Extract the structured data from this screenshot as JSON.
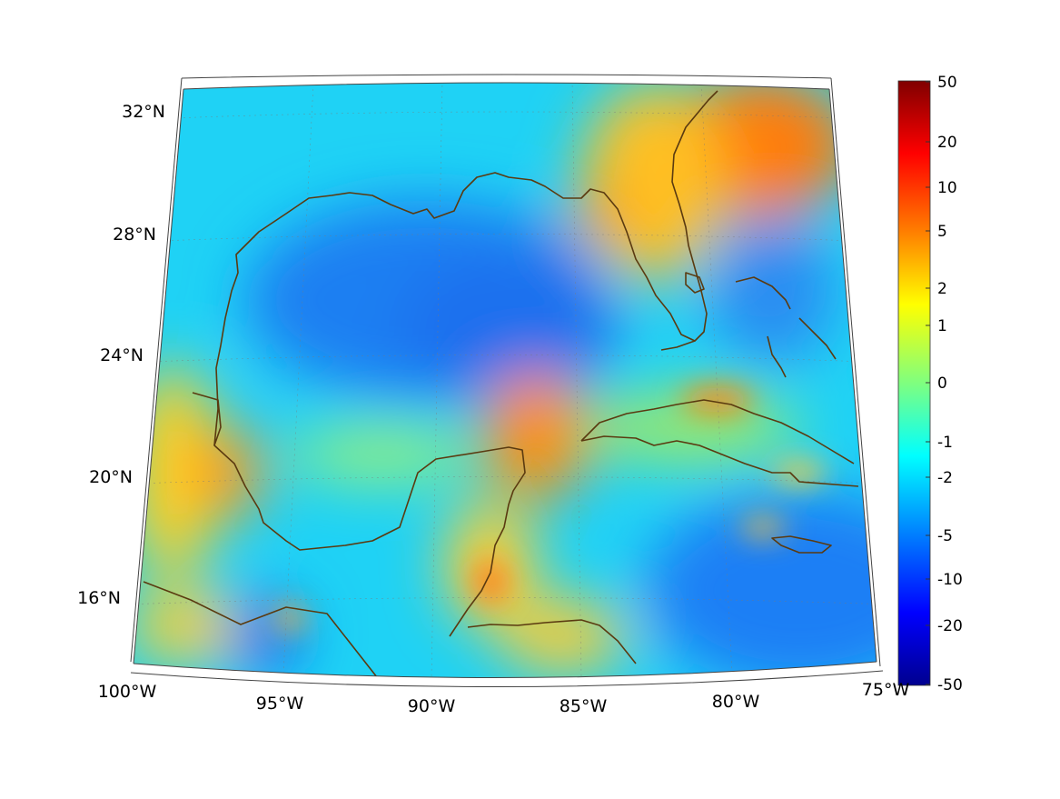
{
  "map": {
    "lat_labels": [
      "32°N",
      "28°N",
      "24°N",
      "20°N",
      "16°N"
    ],
    "lon_labels": [
      "100°W",
      "95°W",
      "90°W",
      "85°W",
      "80°W",
      "75°W"
    ],
    "lat_values": [
      32,
      28,
      24,
      20,
      16
    ],
    "lon_values": [
      -100,
      -95,
      -90,
      -85,
      -80,
      -75
    ],
    "extent": {
      "lon_min": -100,
      "lon_max": -75,
      "lat_min": 15,
      "lat_max": 33
    },
    "coastline_color": "#5a3a10",
    "grid": "dotted"
  },
  "colorbar": {
    "tick_labels": [
      "50",
      "20",
      "10",
      "5",
      "2",
      "1",
      "0",
      "-1",
      "-2",
      "-5",
      "-10",
      "-20",
      "-50"
    ],
    "colormap": "jet",
    "top_color": "#800000",
    "bottom_color": "#00008f"
  }
}
